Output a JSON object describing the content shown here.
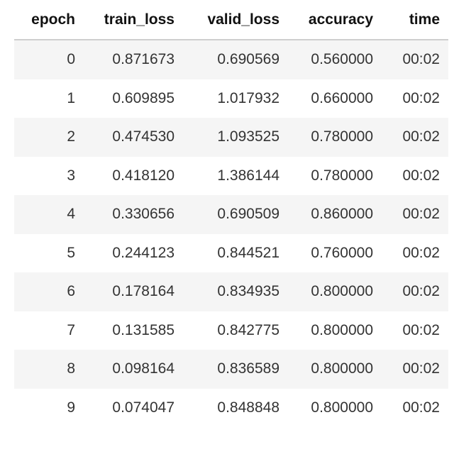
{
  "table": {
    "columns": [
      "epoch",
      "train_loss",
      "valid_loss",
      "accuracy",
      "time"
    ],
    "rows": [
      [
        "0",
        "0.871673",
        "0.690569",
        "0.560000",
        "00:02"
      ],
      [
        "1",
        "0.609895",
        "1.017932",
        "0.660000",
        "00:02"
      ],
      [
        "2",
        "0.474530",
        "1.093525",
        "0.780000",
        "00:02"
      ],
      [
        "3",
        "0.418120",
        "1.386144",
        "0.780000",
        "00:02"
      ],
      [
        "4",
        "0.330656",
        "0.690509",
        "0.860000",
        "00:02"
      ],
      [
        "5",
        "0.244123",
        "0.844521",
        "0.760000",
        "00:02"
      ],
      [
        "6",
        "0.178164",
        "0.834935",
        "0.800000",
        "00:02"
      ],
      [
        "7",
        "0.131585",
        "0.842775",
        "0.800000",
        "00:02"
      ],
      [
        "8",
        "0.098164",
        "0.836589",
        "0.800000",
        "00:02"
      ],
      [
        "9",
        "0.074047",
        "0.848848",
        "0.800000",
        "00:02"
      ]
    ]
  }
}
